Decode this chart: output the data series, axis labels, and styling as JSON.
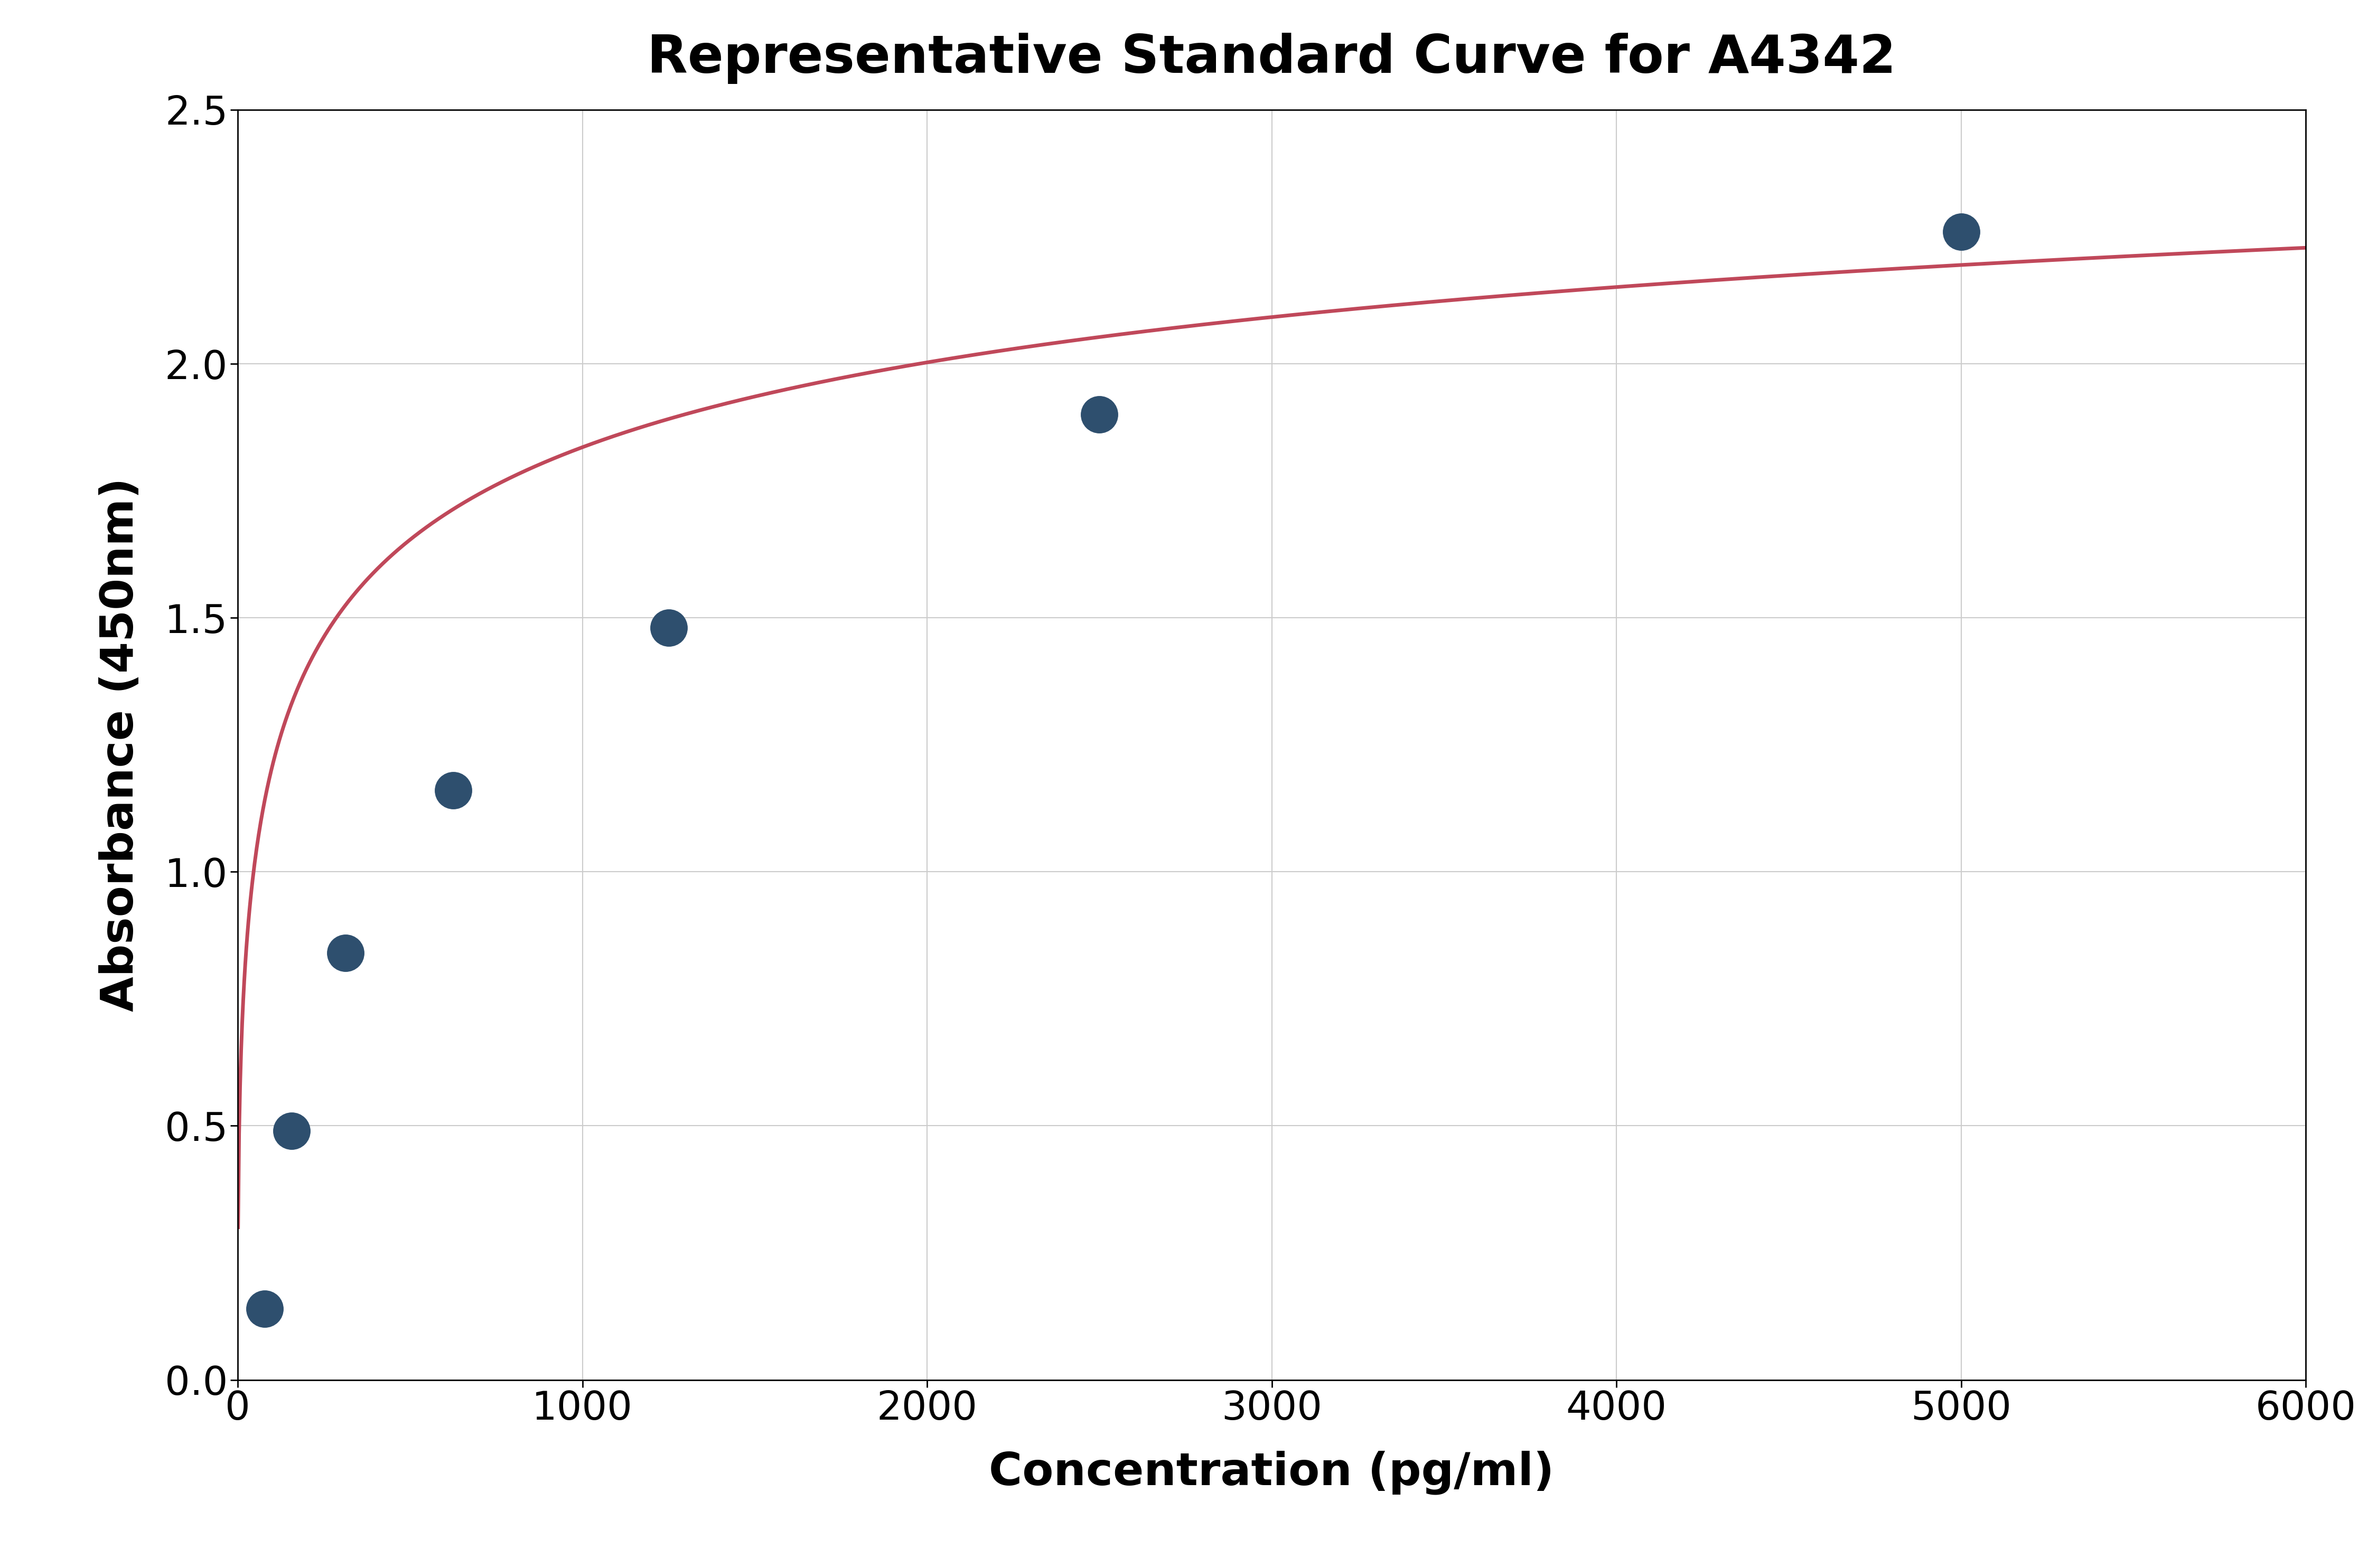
{
  "title": "Representative Standard Curve for A4342",
  "xlabel": "Concentration (pg/ml)",
  "ylabel": "Absorbance (450nm)",
  "x_data": [
    78,
    156,
    313,
    625,
    1250,
    2500,
    5000
  ],
  "y_data": [
    0.14,
    0.49,
    0.84,
    1.16,
    1.48,
    1.9,
    2.26
  ],
  "xlim": [
    0,
    6000
  ],
  "ylim": [
    0.0,
    2.5
  ],
  "xticks": [
    0,
    1000,
    2000,
    3000,
    4000,
    5000,
    6000
  ],
  "yticks": [
    0.0,
    0.5,
    1.0,
    1.5,
    2.0,
    2.5
  ],
  "curve_color": "#c0485a",
  "point_color": "#2e4f6e",
  "point_size": 2500,
  "line_width": 5.0,
  "title_fontsize": 72,
  "label_fontsize": 62,
  "tick_fontsize": 54,
  "background_color": "#ffffff",
  "grid_color": "#cccccc"
}
